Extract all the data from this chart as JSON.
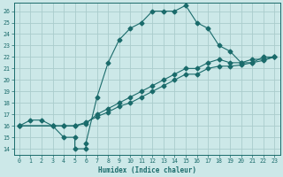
{
  "xlabel": "Humidex (Indice chaleur)",
  "bg_color": "#cce8e8",
  "grid_color": "#aacccc",
  "line_color": "#1a6b6b",
  "xlim": [
    -0.5,
    23.5
  ],
  "ylim": [
    13.5,
    26.7
  ],
  "yticks": [
    14,
    15,
    16,
    17,
    18,
    19,
    20,
    21,
    22,
    23,
    24,
    25,
    26
  ],
  "xticks": [
    0,
    1,
    2,
    3,
    4,
    5,
    6,
    7,
    8,
    9,
    10,
    11,
    12,
    13,
    14,
    15,
    16,
    17,
    18,
    19,
    20,
    21,
    22,
    23
  ],
  "curve1_x": [
    0,
    1,
    2,
    3,
    4,
    5,
    5,
    6,
    6,
    7,
    8,
    9,
    10,
    11,
    12,
    13,
    14,
    15,
    16,
    17,
    18,
    19,
    20,
    21,
    22,
    23
  ],
  "curve1_y": [
    16,
    16.5,
    16.5,
    16,
    15,
    15,
    14,
    14,
    14.5,
    18.5,
    21.5,
    23.5,
    24.5,
    25,
    26,
    26,
    26,
    26.5,
    25,
    24.5,
    23,
    22.5,
    21.5,
    21.5,
    22,
    22
  ],
  "curve2_x": [
    0,
    3,
    4,
    5,
    6,
    7,
    8,
    9,
    10,
    11,
    12,
    13,
    14,
    15,
    16,
    17,
    18,
    19,
    20,
    21,
    22,
    23
  ],
  "curve2_y": [
    16,
    16,
    16,
    16,
    16.2,
    17,
    17.5,
    18,
    18.5,
    19,
    19.5,
    20,
    20.5,
    21,
    21,
    21.5,
    21.8,
    21.5,
    21.5,
    21.8,
    21.8,
    22
  ],
  "curve3_x": [
    0,
    3,
    4,
    5,
    6,
    7,
    8,
    9,
    10,
    11,
    12,
    13,
    14,
    15,
    16,
    17,
    18,
    19,
    20,
    21,
    22,
    23
  ],
  "curve3_y": [
    16,
    16,
    16,
    16,
    16.3,
    16.8,
    17.2,
    17.7,
    18,
    18.5,
    19,
    19.5,
    20,
    20.5,
    20.5,
    21,
    21.2,
    21.2,
    21.3,
    21.5,
    21.7,
    22
  ],
  "markersize": 2.5
}
